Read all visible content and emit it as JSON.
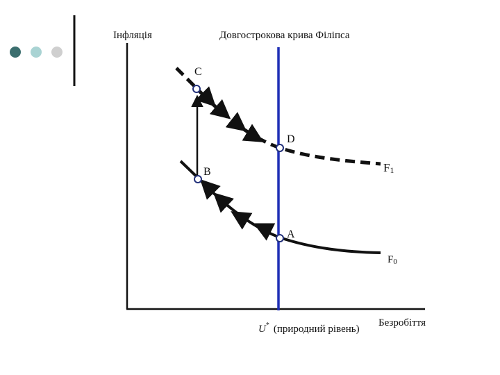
{
  "decor": {
    "dots": [
      {
        "name": "dot-dark",
        "color": "#3b6e6e"
      },
      {
        "name": "dot-light",
        "color": "#a9d3d3"
      },
      {
        "name": "dot-gray",
        "color": "#cfcfcf"
      }
    ],
    "rule_color": "#111111"
  },
  "diagram": {
    "y_axis_label": "Інфляція",
    "x_axis_label": "Безробіття",
    "lrpc_label": "Довгострокова крива Філіпса",
    "natural_rate_symbol": "U",
    "natural_rate_superscript": "*",
    "natural_rate_text": "(природний рівень)",
    "points": {
      "A": "A",
      "B": "B",
      "C": "C",
      "D": "D"
    },
    "curve_f0": {
      "letter": "F",
      "subscript": "0"
    },
    "curve_f1": {
      "letter": "F",
      "subscript": "1"
    },
    "colors": {
      "lrpc": "#1f2fb5",
      "curves": "#111111",
      "point_stroke": "#22307a",
      "point_fill": "#ffffff"
    }
  }
}
